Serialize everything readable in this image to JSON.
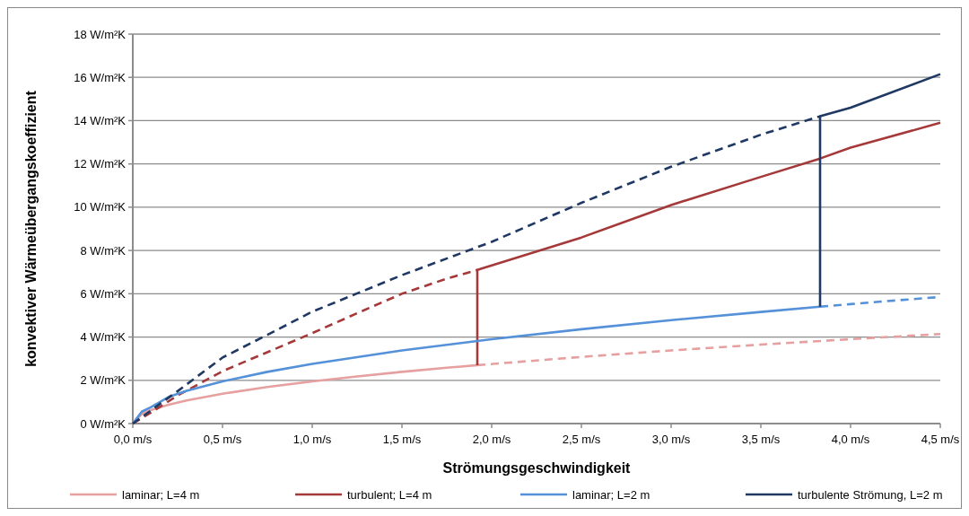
{
  "chart_data": {
    "type": "line",
    "xlabel": "Strömungsgeschwindigkeit",
    "ylabel": "konvektiver Wärmeübergangskoeffizient",
    "xlim": [
      0,
      4.5
    ],
    "ylim": [
      0,
      18
    ],
    "xticks": [
      {
        "value": 0,
        "label": "0,0 m/s"
      },
      {
        "value": 0.5,
        "label": "0,5 m/s"
      },
      {
        "value": 1,
        "label": "1,0 m/s"
      },
      {
        "value": 1.5,
        "label": "1,5 m/s"
      },
      {
        "value": 2,
        "label": "2,0 m/s"
      },
      {
        "value": 2.5,
        "label": "2,5 m/s"
      },
      {
        "value": 3,
        "label": "3,0 m/s"
      },
      {
        "value": 3.5,
        "label": "3,5 m/s"
      },
      {
        "value": 4,
        "label": "4,0 m/s"
      },
      {
        "value": 4.5,
        "label": "4,5 m/s"
      }
    ],
    "yticks": [
      {
        "value": 0,
        "label": "0 W/m²K"
      },
      {
        "value": 2,
        "label": "2 W/m²K"
      },
      {
        "value": 4,
        "label": "4 W/m²K"
      },
      {
        "value": 6,
        "label": "6 W/m²K"
      },
      {
        "value": 8,
        "label": "8 W/m²K"
      },
      {
        "value": 10,
        "label": "10 W/m²K"
      },
      {
        "value": 12,
        "label": "12 W/m²K"
      },
      {
        "value": 14,
        "label": "14 W/m²K"
      },
      {
        "value": 16,
        "label": "16 W/m²K"
      },
      {
        "value": 18,
        "label": "18 W/m²K"
      }
    ],
    "grid": "y",
    "legend": "bottom",
    "marker": "none",
    "series": [
      {
        "name": "laminar; L=4 m",
        "color": "#e6a0a0",
        "line_style": "solid",
        "x": [
          0,
          0.05,
          0.1,
          0.2,
          0.3,
          0.5,
          0.75,
          1,
          1.25,
          1.5,
          1.75,
          1.92
        ],
        "values": [
          0,
          0.44,
          0.62,
          0.87,
          1.07,
          1.38,
          1.69,
          1.95,
          2.18,
          2.39,
          2.58,
          2.7
        ]
      },
      {
        "color": "#e6a0a0",
        "line_style": "dashed",
        "x": [
          1.92,
          2.5,
          3,
          3.5,
          4,
          4.5
        ],
        "values": [
          2.7,
          3.08,
          3.38,
          3.65,
          3.9,
          4.14
        ]
      },
      {
        "name": "turbulent; L=4 m",
        "color": "#a5393a",
        "line_style": "solid",
        "x": [
          1.92,
          1.92,
          2.5,
          3,
          3.5,
          3.83,
          4,
          4.5
        ],
        "values": [
          2.7,
          7.1,
          8.6,
          10.1,
          11.4,
          12.25,
          12.75,
          13.9
        ]
      },
      {
        "color": "#a5393a",
        "line_style": "dashed",
        "x": [
          0,
          0.1,
          0.25,
          0.5,
          0.75,
          1,
          1.25,
          1.5,
          1.75,
          1.92
        ],
        "values": [
          0,
          0.5,
          1.3,
          2.42,
          3.3,
          4.18,
          5.1,
          6,
          6.7,
          7.1
        ]
      },
      {
        "name": "laminar; L=2 m",
        "color": "#5591d9",
        "line_style": "solid",
        "x": [
          0,
          0.05,
          0.1,
          0.2,
          0.3,
          0.5,
          0.75,
          1,
          1.5,
          2,
          2.5,
          3,
          3.5,
          3.83
        ],
        "values": [
          0,
          0.55,
          0.75,
          1.23,
          1.51,
          1.95,
          2.39,
          2.76,
          3.38,
          3.9,
          4.36,
          4.78,
          5.16,
          5.4
        ]
      },
      {
        "color": "#5591d9",
        "line_style": "dashed",
        "x": [
          3.83,
          4,
          4.25,
          4.5
        ],
        "values": [
          5.4,
          5.52,
          5.69,
          5.85
        ]
      },
      {
        "name": "turbulente Strömung, L=2 m",
        "color": "#1f3864",
        "line_style": "solid",
        "x": [
          3.83,
          3.83,
          4,
          4.5
        ],
        "values": [
          5.4,
          14.2,
          14.6,
          16.15
        ]
      },
      {
        "color": "#1f3864",
        "line_style": "dashed",
        "x": [
          0,
          0.1,
          0.25,
          0.5,
          0.75,
          1,
          1.5,
          2,
          2.5,
          3,
          3.5,
          3.83
        ],
        "values": [
          0,
          0.6,
          1.5,
          3.05,
          4.1,
          5.17,
          6.86,
          8.4,
          10.2,
          11.87,
          13.35,
          14.2
        ]
      }
    ]
  }
}
